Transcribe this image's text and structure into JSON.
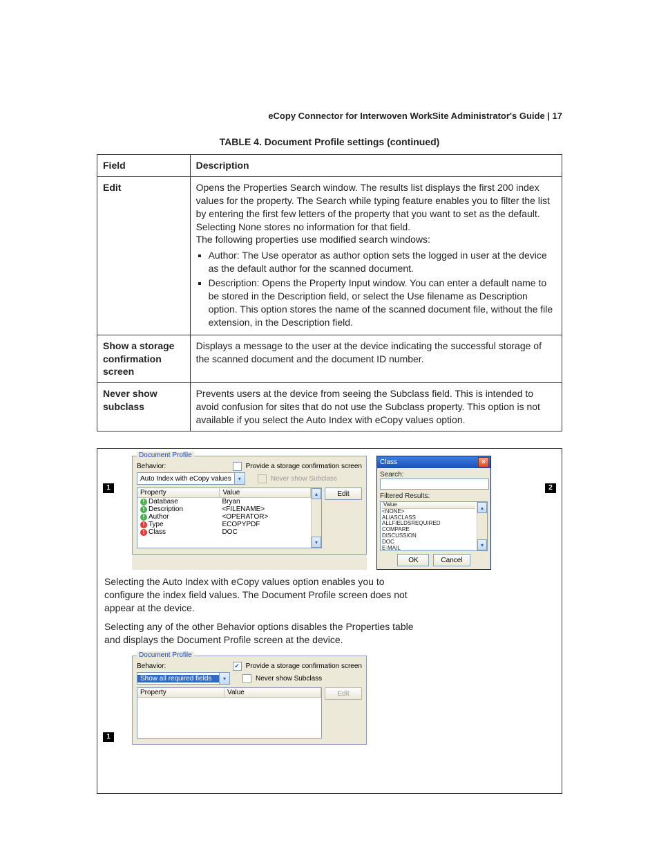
{
  "header": "eCopy Connector for Interwoven WorkSite Administrator's Guide  |  17",
  "table_title": "TABLE 4. Document Profile settings  (continued)",
  "columns": {
    "field": "Field",
    "desc": "Description"
  },
  "rows": {
    "edit": {
      "field": "Edit",
      "p1": "Opens the Properties Search window. The results list displays the first 200 index values for the property. The Search while typing feature enables you to filter the list by entering the first few letters of the property that you want to set as the default.",
      "p2": "Selecting None stores no information for that field.",
      "p3": "The following properties use modified search windows:",
      "b1": "Author: The Use operator as author option sets the logged in user at the device as the default author for the scanned document.",
      "b2": "Description: Opens the Property Input window. You can enter a default name to be stored in the Description field, or select the Use filename as Description option. This option stores the name of the scanned document file, without the file extension, in the Description field."
    },
    "confirm": {
      "field": "Show a storage confirmation screen",
      "desc": "Displays a message to the user at the device indicating the successful storage of the scanned document and the document ID number."
    },
    "never": {
      "field": "Never show subclass",
      "desc": "Prevents users at the device from seeing the Subclass field. This is intended to avoid confusion for sites that do not use the Subclass property. This option is not available if you select the Auto Index with eCopy values option."
    }
  },
  "profile1": {
    "fieldset_title": "Document Profile",
    "behavior_label": "Behavior:",
    "behavior_value": "Auto Index with eCopy values",
    "provide_label": "Provide a storage confirmation screen",
    "never_label": "Never show Subclass",
    "col_property": "Property",
    "col_value": "Value",
    "edit_btn": "Edit",
    "items": [
      {
        "icon": "green",
        "prop": "Database",
        "val": "Bryan"
      },
      {
        "icon": "green",
        "prop": "Description",
        "val": "<FILENAME>"
      },
      {
        "icon": "green",
        "prop": "Author",
        "val": "<OPERATOR>"
      },
      {
        "icon": "red",
        "prop": "Type",
        "val": "ECOPYPDF"
      },
      {
        "icon": "red",
        "prop": "Class",
        "val": "DOC"
      }
    ]
  },
  "class_popup": {
    "title": "Class",
    "search_label": "Search:",
    "filtered_label": "Filtered Results:",
    "value_col": "Value",
    "items": [
      "<NONE>",
      "ALIASCLASS",
      "ALLFIELDSREQUIRED",
      "COMPARE",
      "DISCUSSION",
      "DOC",
      "E-MAIL"
    ],
    "ok": "OK",
    "cancel": "Cancel"
  },
  "mid_para1": "Selecting the Auto Index with eCopy values option enables you to configure the index field values. The Document Profile screen does not appear at the device.",
  "mid_para2": "Selecting any of the other Behavior options disables the Properties table and displays the Document Profile screen at the device.",
  "profile2": {
    "fieldset_title": "Document Profile",
    "behavior_label": "Behavior:",
    "behavior_value": "Show all required fields",
    "provide_label": "Provide a storage confirmation screen",
    "never_label": "Never show Subclass",
    "col_property": "Property",
    "col_value": "Value",
    "edit_btn": "Edit"
  },
  "callouts": {
    "c1": "1",
    "c2": "2",
    "c3": "1"
  }
}
